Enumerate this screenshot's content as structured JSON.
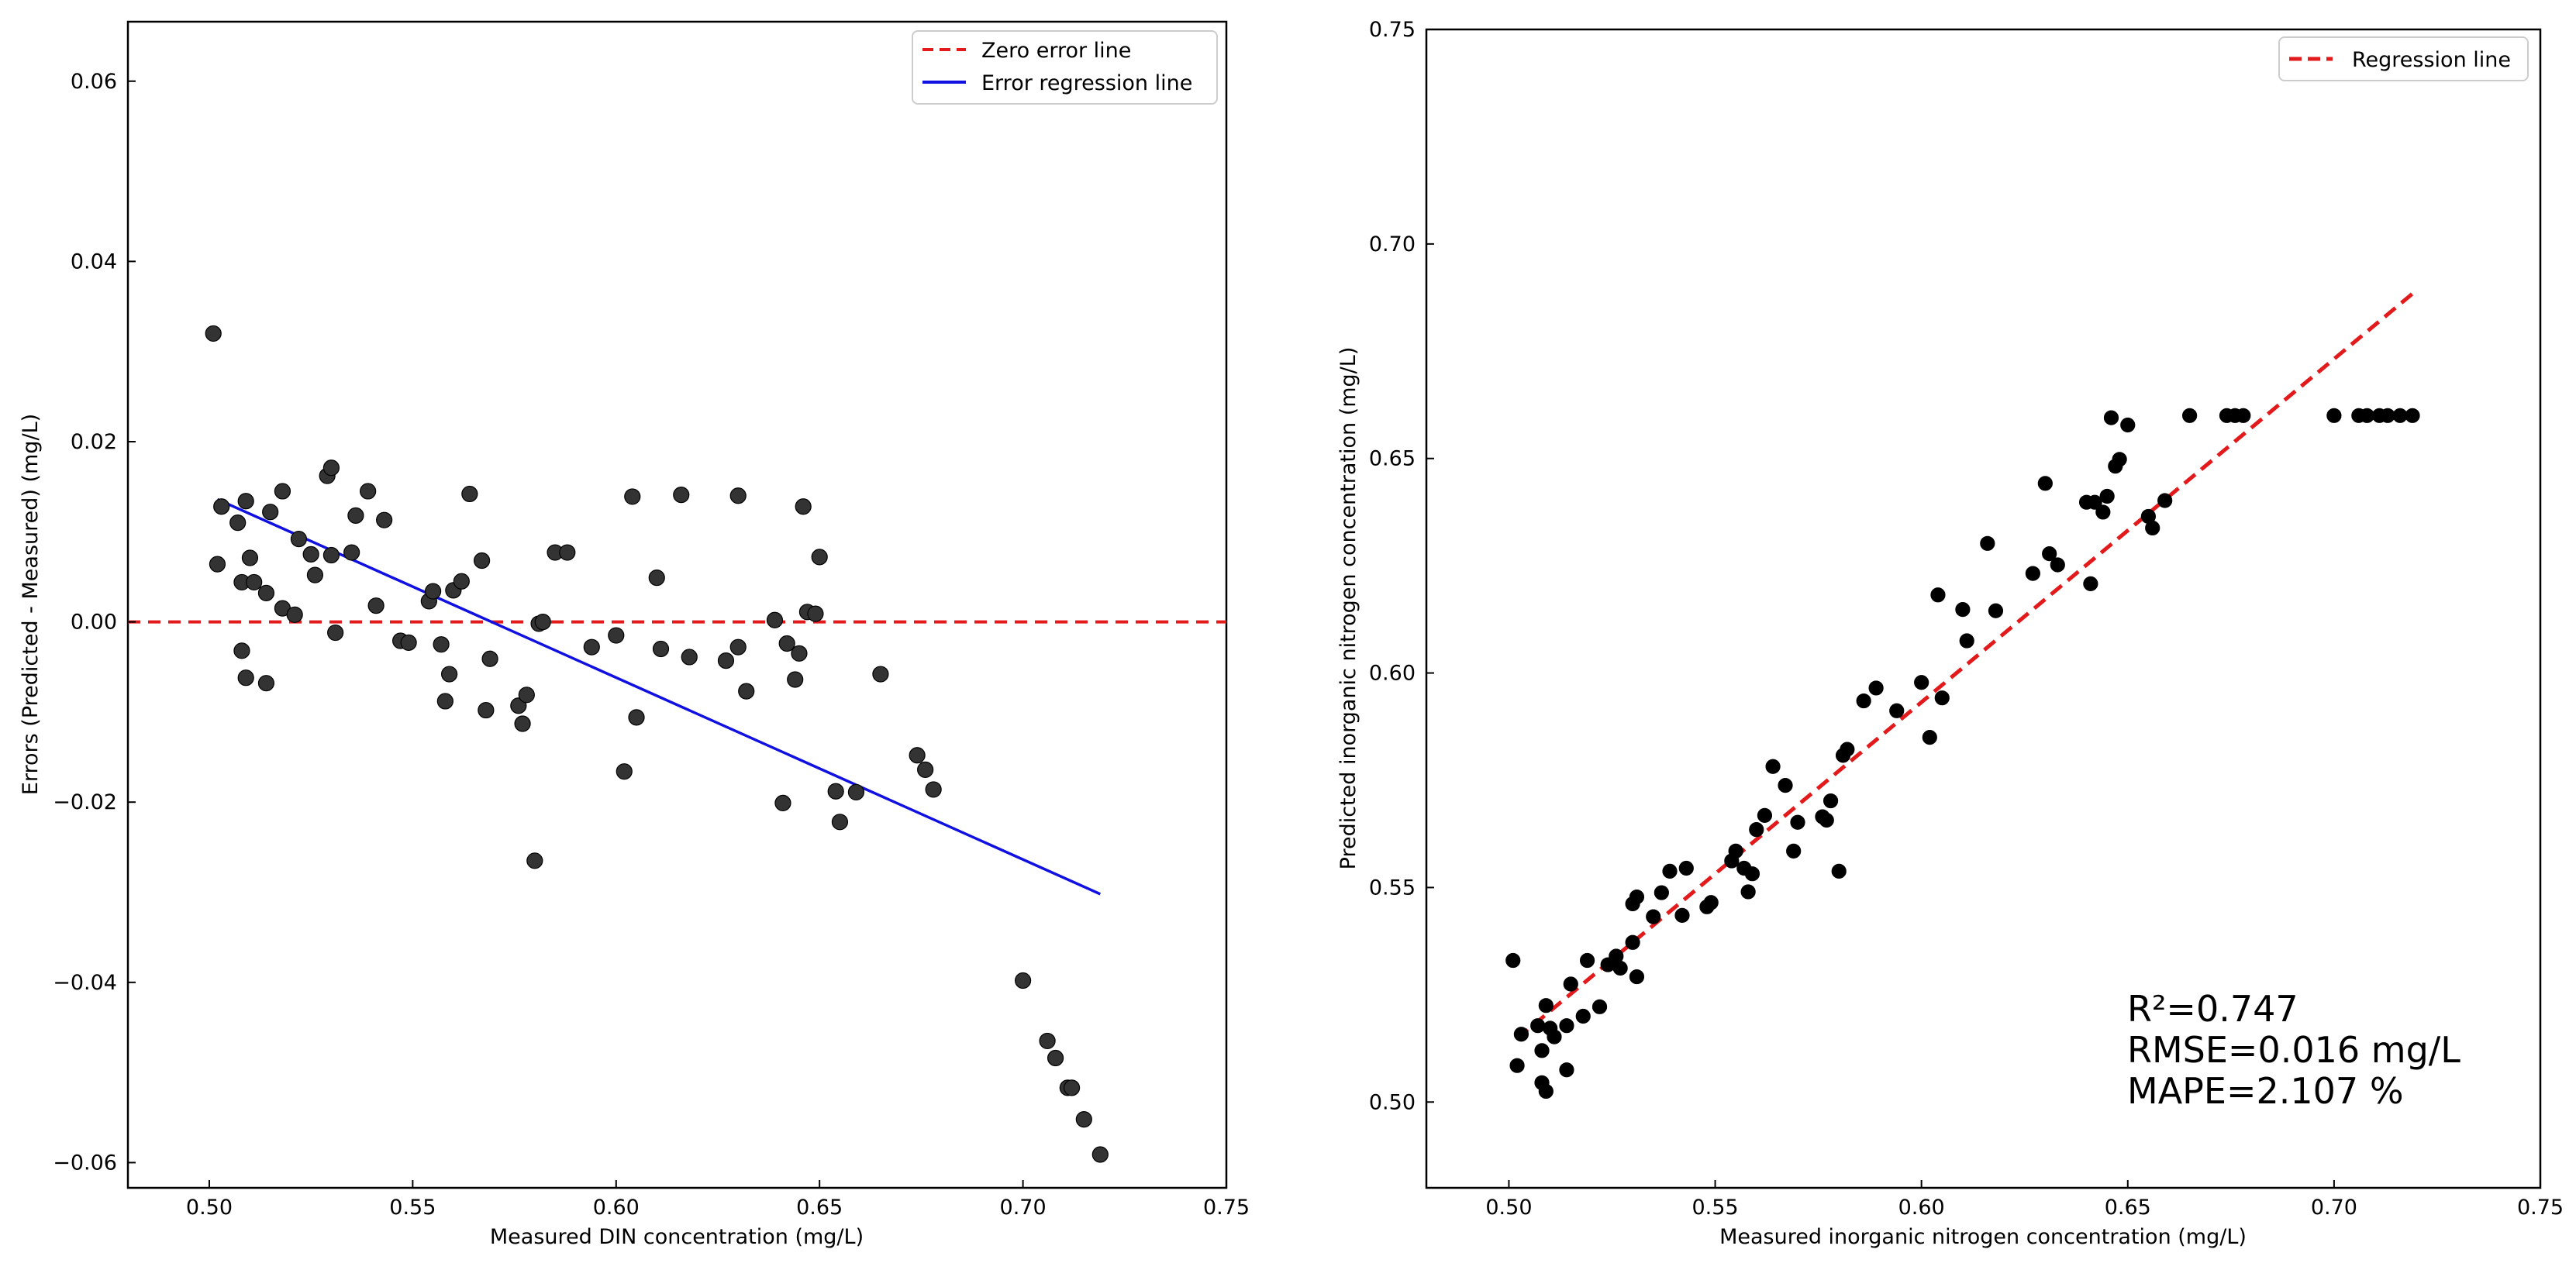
{
  "chart_data": [
    {
      "type": "scatter",
      "xlabel": "Measured DIN concentration (mg/L)",
      "ylabel": "Errors (Predicted - Measured) (mg/L)",
      "xlim": [
        0.48,
        0.75
      ],
      "ylim": [
        -0.0628,
        0.0666
      ],
      "xticks": [
        0.5,
        0.55,
        0.6,
        0.65,
        0.7,
        0.75
      ],
      "xtick_labels": [
        "0.50",
        "0.55",
        "0.60",
        "0.65",
        "0.70",
        "0.75"
      ],
      "yticks": [
        -0.06,
        -0.04,
        -0.02,
        0.0,
        0.02,
        0.04,
        0.06
      ],
      "ytick_labels": [
        "−0.06",
        "−0.04",
        "−0.02",
        "0.00",
        "0.02",
        "0.04",
        "0.06"
      ],
      "legend": {
        "position": "top-right",
        "entries": [
          {
            "label": "Zero error line",
            "style": "dashed",
            "color": "#e31a1c"
          },
          {
            "label": "Error regression line",
            "style": "solid",
            "color": "#1010e0"
          }
        ]
      },
      "zero_line": {
        "y": 0.0,
        "color": "#e31a1c"
      },
      "regression_line": {
        "x": [
          0.502,
          0.719
        ],
        "y": [
          0.0136,
          -0.0302
        ],
        "color": "#1010e0"
      },
      "point_color": "#333333",
      "points": [
        [
          0.501,
          0.032
        ],
        [
          0.502,
          0.0064
        ],
        [
          0.503,
          0.0128
        ],
        [
          0.507,
          0.011
        ],
        [
          0.508,
          0.0044
        ],
        [
          0.508,
          -0.0032
        ],
        [
          0.509,
          0.0134
        ],
        [
          0.509,
          -0.0062
        ],
        [
          0.51,
          0.0071
        ],
        [
          0.511,
          0.0044
        ],
        [
          0.514,
          0.0032
        ],
        [
          0.514,
          -0.0068
        ],
        [
          0.515,
          0.0122
        ],
        [
          0.518,
          0.0015
        ],
        [
          0.518,
          0.0145
        ],
        [
          0.521,
          0.0008
        ],
        [
          0.522,
          0.0092
        ],
        [
          0.525,
          0.0075
        ],
        [
          0.526,
          0.0052
        ],
        [
          0.529,
          0.0162
        ],
        [
          0.53,
          0.0171
        ],
        [
          0.53,
          0.0074
        ],
        [
          0.531,
          -0.0012
        ],
        [
          0.535,
          0.0077
        ],
        [
          0.536,
          0.0118
        ],
        [
          0.539,
          0.0145
        ],
        [
          0.541,
          0.0018
        ],
        [
          0.543,
          0.0113
        ],
        [
          0.547,
          -0.0021
        ],
        [
          0.549,
          -0.0023
        ],
        [
          0.554,
          0.0023
        ],
        [
          0.555,
          0.0034
        ],
        [
          0.557,
          -0.0025
        ],
        [
          0.558,
          -0.0088
        ],
        [
          0.559,
          -0.0058
        ],
        [
          0.56,
          0.0035
        ],
        [
          0.562,
          0.0045
        ],
        [
          0.564,
          0.0142
        ],
        [
          0.567,
          0.0068
        ],
        [
          0.568,
          -0.0098
        ],
        [
          0.569,
          -0.0041
        ],
        [
          0.576,
          -0.0093
        ],
        [
          0.577,
          -0.0113
        ],
        [
          0.578,
          -0.0081
        ],
        [
          0.58,
          -0.0265
        ],
        [
          0.581,
          -0.0002
        ],
        [
          0.582,
          0.0
        ],
        [
          0.585,
          0.0077
        ],
        [
          0.588,
          0.0077
        ],
        [
          0.594,
          -0.0028
        ],
        [
          0.6,
          -0.0015
        ],
        [
          0.602,
          -0.0166
        ],
        [
          0.604,
          0.0139
        ],
        [
          0.605,
          -0.0106
        ],
        [
          0.61,
          0.0049
        ],
        [
          0.611,
          -0.003
        ],
        [
          0.616,
          0.0141
        ],
        [
          0.618,
          -0.0039
        ],
        [
          0.627,
          -0.0043
        ],
        [
          0.63,
          0.014
        ],
        [
          0.63,
          -0.0028
        ],
        [
          0.632,
          -0.0077
        ],
        [
          0.639,
          0.0002
        ],
        [
          0.641,
          -0.0201
        ],
        [
          0.642,
          -0.0024
        ],
        [
          0.644,
          -0.0064
        ],
        [
          0.645,
          -0.0035
        ],
        [
          0.646,
          0.0128
        ],
        [
          0.647,
          0.0011
        ],
        [
          0.649,
          0.0009
        ],
        [
          0.65,
          0.0072
        ],
        [
          0.654,
          -0.0188
        ],
        [
          0.655,
          -0.0222
        ],
        [
          0.659,
          -0.0189
        ],
        [
          0.665,
          -0.0058
        ],
        [
          0.674,
          -0.0148
        ],
        [
          0.676,
          -0.0164
        ],
        [
          0.678,
          -0.0186
        ],
        [
          0.7,
          -0.0398
        ],
        [
          0.706,
          -0.0465
        ],
        [
          0.708,
          -0.0484
        ],
        [
          0.711,
          -0.0517
        ],
        [
          0.712,
          -0.0517
        ],
        [
          0.715,
          -0.0552
        ],
        [
          0.719,
          -0.0591
        ]
      ]
    },
    {
      "type": "scatter",
      "xlabel": "Measured inorganic nitrogen concentration (mg/L)",
      "ylabel": "Predicted inorganic nitrogen concentration (mg/L)",
      "xlim": [
        0.48,
        0.75
      ],
      "ylim": [
        0.48,
        0.75
      ],
      "xticks": [
        0.5,
        0.55,
        0.6,
        0.65,
        0.7,
        0.75
      ],
      "xtick_labels": [
        "0.50",
        "0.55",
        "0.60",
        "0.65",
        "0.70",
        "0.75"
      ],
      "yticks": [
        0.5,
        0.55,
        0.6,
        0.65,
        0.7,
        0.75
      ],
      "ytick_labels": [
        "0.50",
        "0.55",
        "0.60",
        "0.65",
        "0.70",
        "0.75"
      ],
      "legend": {
        "position": "top-right",
        "entries": [
          {
            "label": "Regression line",
            "style": "dashed",
            "color": "#e31a1c"
          }
        ]
      },
      "regression_line": {
        "x": [
          0.502,
          0.719
        ],
        "y": [
          0.5148,
          0.6884
        ],
        "color": "#e31a1c"
      },
      "annotation": [
        "R²=0.747",
        "RMSE=0.016 mg/L",
        "MAPE=2.107 %"
      ],
      "point_color": "#000000",
      "points": [
        [
          0.501,
          0.533
        ],
        [
          0.502,
          0.5085
        ],
        [
          0.503,
          0.5158
        ],
        [
          0.507,
          0.5178
        ],
        [
          0.508,
          0.5045
        ],
        [
          0.508,
          0.512
        ],
        [
          0.509,
          0.5025
        ],
        [
          0.509,
          0.5225
        ],
        [
          0.51,
          0.5172
        ],
        [
          0.511,
          0.5152
        ],
        [
          0.514,
          0.5178
        ],
        [
          0.514,
          0.5075
        ],
        [
          0.515,
          0.5275
        ],
        [
          0.518,
          0.52
        ],
        [
          0.519,
          0.533
        ],
        [
          0.522,
          0.5222
        ],
        [
          0.524,
          0.532
        ],
        [
          0.526,
          0.534
        ],
        [
          0.527,
          0.5312
        ],
        [
          0.53,
          0.5462
        ],
        [
          0.53,
          0.5372
        ],
        [
          0.531,
          0.5292
        ],
        [
          0.531,
          0.5478
        ],
        [
          0.535,
          0.5432
        ],
        [
          0.537,
          0.5488
        ],
        [
          0.539,
          0.5538
        ],
        [
          0.542,
          0.5435
        ],
        [
          0.543,
          0.5545
        ],
        [
          0.548,
          0.5455
        ],
        [
          0.549,
          0.5465
        ],
        [
          0.554,
          0.5562
        ],
        [
          0.555,
          0.5585
        ],
        [
          0.557,
          0.5545
        ],
        [
          0.558,
          0.549
        ],
        [
          0.559,
          0.5532
        ],
        [
          0.56,
          0.5635
        ],
        [
          0.562,
          0.5668
        ],
        [
          0.564,
          0.5782
        ],
        [
          0.567,
          0.5738
        ],
        [
          0.569,
          0.5585
        ],
        [
          0.57,
          0.5652
        ],
        [
          0.576,
          0.5665
        ],
        [
          0.577,
          0.5657
        ],
        [
          0.578,
          0.5702
        ],
        [
          0.58,
          0.5538
        ],
        [
          0.581,
          0.5808
        ],
        [
          0.582,
          0.5822
        ],
        [
          0.586,
          0.5935
        ],
        [
          0.589,
          0.5965
        ],
        [
          0.594,
          0.5912
        ],
        [
          0.6,
          0.5978
        ],
        [
          0.602,
          0.585
        ],
        [
          0.604,
          0.6182
        ],
        [
          0.605,
          0.5942
        ],
        [
          0.61,
          0.6148
        ],
        [
          0.611,
          0.6075
        ],
        [
          0.616,
          0.6302
        ],
        [
          0.618,
          0.6145
        ],
        [
          0.627,
          0.6232
        ],
        [
          0.63,
          0.6442
        ],
        [
          0.631,
          0.6278
        ],
        [
          0.633,
          0.6252
        ],
        [
          0.64,
          0.6398
        ],
        [
          0.641,
          0.6208
        ],
        [
          0.642,
          0.6398
        ],
        [
          0.644,
          0.6375
        ],
        [
          0.645,
          0.6412
        ],
        [
          0.646,
          0.6595
        ],
        [
          0.647,
          0.6482
        ],
        [
          0.648,
          0.6498
        ],
        [
          0.65,
          0.6578
        ],
        [
          0.655,
          0.6365
        ],
        [
          0.656,
          0.6338
        ],
        [
          0.659,
          0.6402
        ],
        [
          0.665,
          0.66
        ],
        [
          0.674,
          0.66
        ],
        [
          0.676,
          0.66
        ],
        [
          0.678,
          0.66
        ],
        [
          0.7,
          0.66
        ],
        [
          0.706,
          0.66
        ],
        [
          0.708,
          0.66
        ],
        [
          0.711,
          0.66
        ],
        [
          0.713,
          0.66
        ],
        [
          0.716,
          0.66
        ],
        [
          0.719,
          0.66
        ]
      ]
    }
  ]
}
